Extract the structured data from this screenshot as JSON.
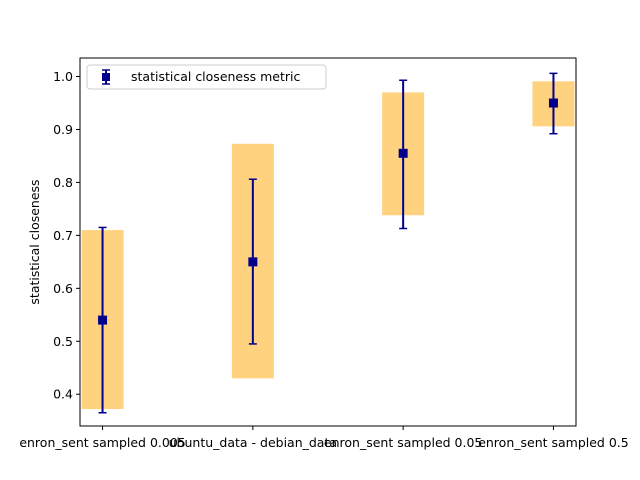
{
  "chart_data": {
    "type": "scatter",
    "title": "",
    "xlabel": "",
    "ylabel": "statistical closeness",
    "categories": [
      "enron_sent sampled 0.005",
      "ubuntu_data - debian_data",
      "enron_sent sampled 0.05",
      "enron_sent sampled 0.5"
    ],
    "series": [
      {
        "name": "statistical closeness metric",
        "values": [
          0.54,
          0.65,
          0.855,
          0.95
        ],
        "error_low": [
          0.365,
          0.495,
          0.713,
          0.892
        ],
        "error_high": [
          0.715,
          0.806,
          0.993,
          1.006
        ],
        "range_low": [
          0.372,
          0.43,
          0.738,
          0.906
        ],
        "range_high": [
          0.71,
          0.873,
          0.97,
          0.991
        ]
      }
    ],
    "ylim": [
      0.34,
      1.035
    ],
    "yticks": [
      "0.4",
      "0.5",
      "0.6",
      "0.7",
      "0.8",
      "0.9",
      "1.0"
    ],
    "grid": false,
    "legend_position": "upper-left",
    "colors": {
      "marker": "#00008b",
      "range_band": "#ffd280"
    }
  }
}
